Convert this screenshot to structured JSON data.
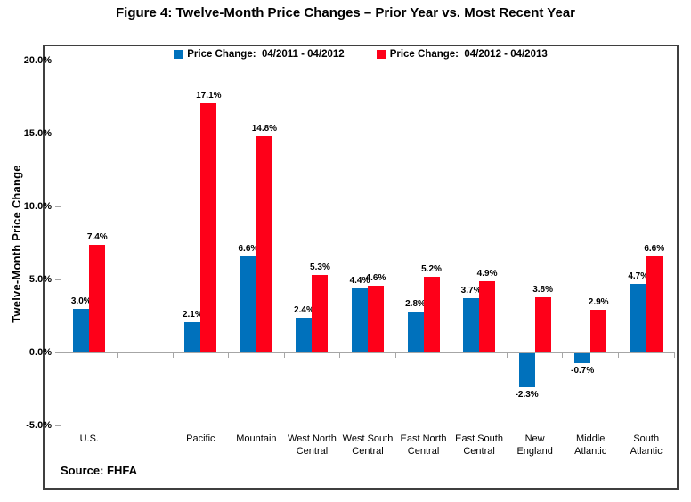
{
  "figure": {
    "title": "Figure 4: Twelve-Month Price Changes – Prior Year vs. Most Recent Year",
    "source": "Source: FHFA"
  },
  "chart_data": {
    "type": "bar",
    "title": "Figure 4: Twelve-Month Price Changes – Prior Year vs. Most Recent Year",
    "xlabel": "",
    "ylabel": "Twelve-Month Price Change",
    "ylim": [
      -5.0,
      20.0
    ],
    "yticks": [
      20.0,
      15.0,
      10.0,
      5.0,
      0.0,
      -5.0
    ],
    "ytick_suffix": "%",
    "grid": false,
    "data_labels": true,
    "legend_position": "top-center",
    "categories": [
      "U.S.",
      "Pacific",
      "Mountain",
      "West North Central",
      "West South Central",
      "East North Central",
      "East South Central",
      "New England",
      "Middle Atlantic",
      "South Atlantic"
    ],
    "series": [
      {
        "name": "Price Change:  04/2011 - 04/2012",
        "color": "#0071bc",
        "values": [
          3.0,
          2.1,
          6.6,
          2.4,
          4.4,
          2.8,
          3.7,
          -2.3,
          -0.7,
          4.7
        ]
      },
      {
        "name": "Price Change:  04/2012 - 04/2013",
        "color": "#fe0019",
        "values": [
          7.4,
          17.1,
          14.8,
          5.3,
          4.6,
          5.2,
          4.9,
          3.8,
          2.9,
          6.6
        ]
      }
    ],
    "layout_hints": {
      "total_slots": 11,
      "empty_slot_after_index": 0,
      "axis_color": "#a6a6a6",
      "frame_color": "#3f3f3f"
    }
  }
}
